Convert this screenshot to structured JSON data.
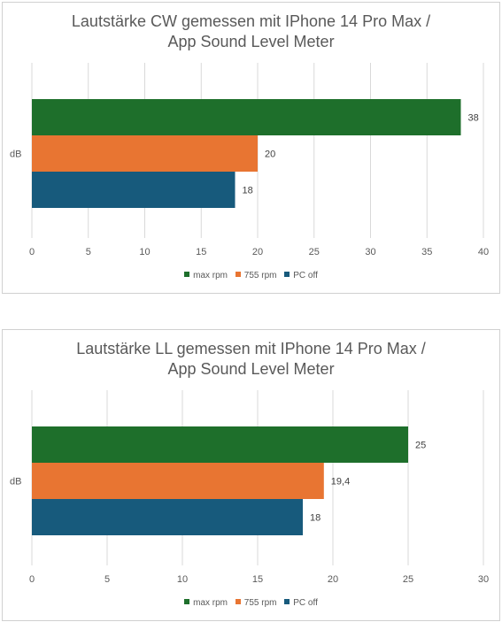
{
  "chart_data": [
    {
      "type": "bar",
      "orientation": "horizontal",
      "title_lines": [
        "Lautstärke CW gemessen mit IPhone 14 Pro Max /",
        "App Sound Level Meter"
      ],
      "categories": [
        "dB"
      ],
      "series": [
        {
          "name": "max rpm",
          "values": [
            38
          ],
          "labels": [
            "38"
          ],
          "color": "#1e6f2b"
        },
        {
          "name": "755 rpm",
          "values": [
            20
          ],
          "labels": [
            "20"
          ],
          "color": "#e87532"
        },
        {
          "name": "PC off",
          "values": [
            18
          ],
          "labels": [
            "18"
          ],
          "color": "#175a7c"
        }
      ],
      "xlim": [
        0,
        40
      ],
      "xticks": [
        0,
        5,
        10,
        15,
        20,
        25,
        30,
        35,
        40
      ],
      "grid": true,
      "legend": "bottom"
    },
    {
      "type": "bar",
      "orientation": "horizontal",
      "title_lines": [
        "Lautstärke LL gemessen mit IPhone 14 Pro Max /",
        "App Sound Level Meter"
      ],
      "categories": [
        "dB"
      ],
      "series": [
        {
          "name": "max rpm",
          "values": [
            25
          ],
          "labels": [
            "25"
          ],
          "color": "#1e6f2b"
        },
        {
          "name": "755 rpm",
          "values": [
            19.4
          ],
          "labels": [
            "19,4"
          ],
          "color": "#e87532"
        },
        {
          "name": "PC off",
          "values": [
            18
          ],
          "labels": [
            "18"
          ],
          "color": "#175a7c"
        }
      ],
      "xlim": [
        0,
        30
      ],
      "xticks": [
        0,
        5,
        10,
        15,
        20,
        25,
        30
      ],
      "grid": true,
      "legend": "bottom"
    }
  ]
}
